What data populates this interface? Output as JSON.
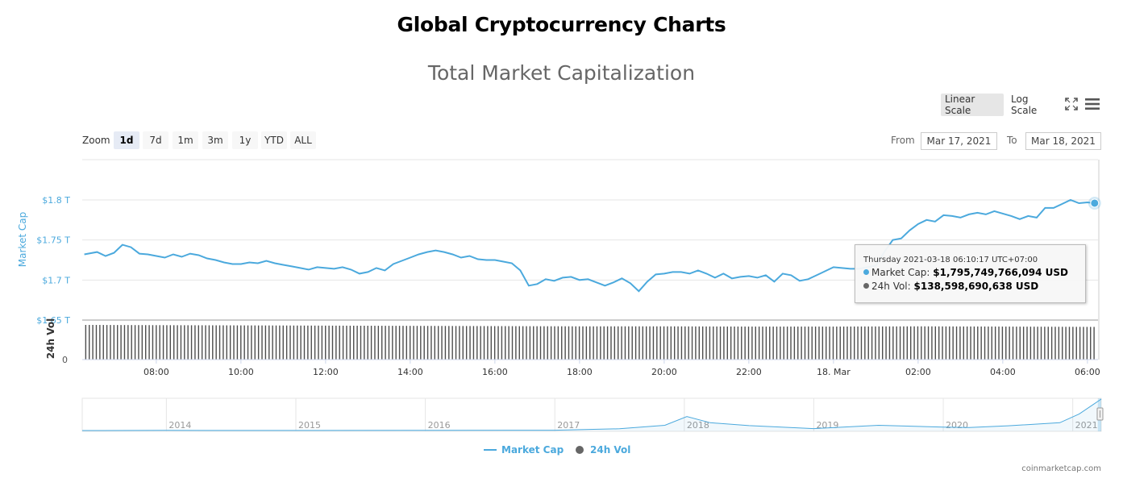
{
  "page": {
    "title": "Global Cryptocurrency Charts",
    "credit": "coinmarketcap.com"
  },
  "toolbar": {
    "linear_scale": "Linear Scale",
    "log_scale": "Log Scale",
    "fullscreen_icon": "fullscreen-icon",
    "menu_icon": "hamburger-menu-icon",
    "active_scale": "Linear Scale"
  },
  "range_selector": {
    "zoom_label": "Zoom",
    "buttons": [
      "1d",
      "7d",
      "1m",
      "3m",
      "1y",
      "YTD",
      "ALL"
    ],
    "active": "1d",
    "from_label": "From",
    "from_value": "Mar 17, 2021",
    "to_label": "To",
    "to_value": "Mar 18, 2021"
  },
  "tooltip": {
    "date": "Thursday 2021-03-18 06:10:17 UTC+07:00",
    "market_cap_label": "Market Cap:",
    "market_cap_value": "$1,795,749,766,094 USD",
    "volume_label": "24h Vol:",
    "volume_value": "$138,598,690,638 USD"
  },
  "legend": {
    "items": [
      {
        "label": "Market Cap",
        "color": "#4ba9dd"
      },
      {
        "label": "24h Vol",
        "color": "#666666"
      }
    ]
  },
  "colors": {
    "market_cap": "#4ba9dd",
    "volume": "#4d4d4d",
    "navigator": "#4ba9dd",
    "grid": "#e6e6e6"
  },
  "chart_data": {
    "type": "line",
    "title": "Total Market Capitalization",
    "y_axis": {
      "label": "Market Cap",
      "ticks": [
        "$1.65 T",
        "$1.7 T",
        "$1.75 T",
        "$1.8 T"
      ],
      "tick_values": [
        1.65,
        1.7,
        1.75,
        1.8
      ],
      "range": [
        1.6,
        1.85
      ],
      "unit": "USD trillions",
      "scale": "linear"
    },
    "volume_axis": {
      "label": "24h Vol",
      "ticks": [
        "0"
      ]
    },
    "x_axis": {
      "tick_labels": [
        "08:00",
        "10:00",
        "12:00",
        "14:00",
        "16:00",
        "18:00",
        "20:00",
        "22:00",
        "18. Mar",
        "02:00",
        "04:00",
        "06:00"
      ],
      "tick_hours": [
        8,
        10,
        12,
        14,
        16,
        18,
        20,
        22,
        24,
        26,
        28,
        30
      ],
      "range_hours": [
        6.25,
        30.25
      ]
    },
    "grid": true,
    "series": [
      {
        "name": "Market Cap",
        "unit": "USD trillions",
        "points": [
          [
            6.3,
            1.732
          ],
          [
            6.6,
            1.735
          ],
          [
            6.8,
            1.73
          ],
          [
            7.0,
            1.734
          ],
          [
            7.2,
            1.744
          ],
          [
            7.4,
            1.741
          ],
          [
            7.6,
            1.733
          ],
          [
            7.8,
            1.732
          ],
          [
            8.0,
            1.73
          ],
          [
            8.2,
            1.728
          ],
          [
            8.4,
            1.732
          ],
          [
            8.6,
            1.729
          ],
          [
            8.8,
            1.733
          ],
          [
            9.0,
            1.731
          ],
          [
            9.2,
            1.727
          ],
          [
            9.4,
            1.725
          ],
          [
            9.6,
            1.722
          ],
          [
            9.8,
            1.72
          ],
          [
            10.0,
            1.72
          ],
          [
            10.2,
            1.722
          ],
          [
            10.4,
            1.721
          ],
          [
            10.6,
            1.724
          ],
          [
            10.8,
            1.721
          ],
          [
            11.0,
            1.719
          ],
          [
            11.2,
            1.717
          ],
          [
            11.4,
            1.715
          ],
          [
            11.6,
            1.713
          ],
          [
            11.8,
            1.716
          ],
          [
            12.0,
            1.715
          ],
          [
            12.2,
            1.714
          ],
          [
            12.4,
            1.716
          ],
          [
            12.6,
            1.713
          ],
          [
            12.8,
            1.708
          ],
          [
            13.0,
            1.71
          ],
          [
            13.2,
            1.715
          ],
          [
            13.4,
            1.712
          ],
          [
            13.6,
            1.72
          ],
          [
            13.8,
            1.724
          ],
          [
            14.0,
            1.728
          ],
          [
            14.2,
            1.732
          ],
          [
            14.4,
            1.735
          ],
          [
            14.6,
            1.737
          ],
          [
            14.8,
            1.735
          ],
          [
            15.0,
            1.732
          ],
          [
            15.2,
            1.728
          ],
          [
            15.4,
            1.73
          ],
          [
            15.6,
            1.726
          ],
          [
            15.8,
            1.725
          ],
          [
            16.0,
            1.725
          ],
          [
            16.2,
            1.723
          ],
          [
            16.4,
            1.721
          ],
          [
            16.6,
            1.712
          ],
          [
            16.8,
            1.693
          ],
          [
            17.0,
            1.695
          ],
          [
            17.2,
            1.701
          ],
          [
            17.4,
            1.699
          ],
          [
            17.6,
            1.703
          ],
          [
            17.8,
            1.704
          ],
          [
            18.0,
            1.7
          ],
          [
            18.2,
            1.701
          ],
          [
            18.4,
            1.697
          ],
          [
            18.6,
            1.693
          ],
          [
            18.8,
            1.697
          ],
          [
            19.0,
            1.702
          ],
          [
            19.2,
            1.696
          ],
          [
            19.4,
            1.686
          ],
          [
            19.6,
            1.698
          ],
          [
            19.8,
            1.707
          ],
          [
            20.0,
            1.708
          ],
          [
            20.2,
            1.71
          ],
          [
            20.4,
            1.71
          ],
          [
            20.6,
            1.708
          ],
          [
            20.8,
            1.712
          ],
          [
            21.0,
            1.708
          ],
          [
            21.2,
            1.703
          ],
          [
            21.4,
            1.708
          ],
          [
            21.6,
            1.702
          ],
          [
            21.8,
            1.704
          ],
          [
            22.0,
            1.705
          ],
          [
            22.2,
            1.703
          ],
          [
            22.4,
            1.706
          ],
          [
            22.6,
            1.698
          ],
          [
            22.8,
            1.708
          ],
          [
            23.0,
            1.706
          ],
          [
            23.2,
            1.699
          ],
          [
            23.4,
            1.701
          ],
          [
            23.6,
            1.706
          ],
          [
            23.8,
            1.711
          ],
          [
            24.0,
            1.716
          ],
          [
            24.2,
            1.715
          ],
          [
            24.4,
            1.714
          ],
          [
            24.6,
            1.714
          ],
          [
            24.8,
            1.716
          ],
          [
            25.0,
            1.718
          ],
          [
            25.2,
            1.735
          ],
          [
            25.4,
            1.75
          ],
          [
            25.6,
            1.752
          ],
          [
            25.8,
            1.762
          ],
          [
            26.0,
            1.77
          ],
          [
            26.2,
            1.775
          ],
          [
            26.4,
            1.773
          ],
          [
            26.6,
            1.781
          ],
          [
            26.8,
            1.78
          ],
          [
            27.0,
            1.778
          ],
          [
            27.2,
            1.782
          ],
          [
            27.4,
            1.784
          ],
          [
            27.6,
            1.782
          ],
          [
            27.8,
            1.786
          ],
          [
            28.0,
            1.783
          ],
          [
            28.2,
            1.78
          ],
          [
            28.4,
            1.776
          ],
          [
            28.6,
            1.78
          ],
          [
            28.8,
            1.778
          ],
          [
            29.0,
            1.79
          ],
          [
            29.2,
            1.79
          ],
          [
            29.4,
            1.795
          ],
          [
            29.6,
            1.8
          ],
          [
            29.8,
            1.796
          ],
          [
            30.0,
            1.797
          ],
          [
            30.17,
            1.796
          ]
        ]
      },
      {
        "name": "24h Vol",
        "unit": "USD billions",
        "points": [
          [
            6.3,
            147
          ],
          [
            8.0,
            146
          ],
          [
            10.0,
            145
          ],
          [
            12.0,
            144
          ],
          [
            14.0,
            143
          ],
          [
            16.0,
            142
          ],
          [
            18.0,
            141
          ],
          [
            20.0,
            141
          ],
          [
            22.0,
            140
          ],
          [
            24.0,
            140
          ],
          [
            26.0,
            141
          ],
          [
            28.0,
            140
          ],
          [
            30.17,
            138.6
          ]
        ]
      }
    ],
    "navigator": {
      "tick_labels": [
        "2014",
        "2015",
        "2016",
        "2017",
        "2018",
        "2019",
        "2020",
        "2021"
      ],
      "tick_years": [
        2014,
        2015,
        2016,
        2017,
        2018,
        2019,
        2020,
        2021
      ],
      "range_years": [
        2013.35,
        2021.22
      ],
      "series": [
        [
          2013.35,
          0.001
        ],
        [
          2014.0,
          0.01
        ],
        [
          2015.0,
          0.004
        ],
        [
          2016.0,
          0.007
        ],
        [
          2017.0,
          0.018
        ],
        [
          2017.5,
          0.1
        ],
        [
          2017.85,
          0.3
        ],
        [
          2018.02,
          0.8
        ],
        [
          2018.2,
          0.45
        ],
        [
          2018.5,
          0.28
        ],
        [
          2019.0,
          0.11
        ],
        [
          2019.5,
          0.3
        ],
        [
          2020.0,
          0.2
        ],
        [
          2020.2,
          0.17
        ],
        [
          2020.5,
          0.27
        ],
        [
          2020.9,
          0.45
        ],
        [
          2021.05,
          0.95
        ],
        [
          2021.15,
          1.45
        ],
        [
          2021.22,
          1.8
        ]
      ]
    }
  }
}
